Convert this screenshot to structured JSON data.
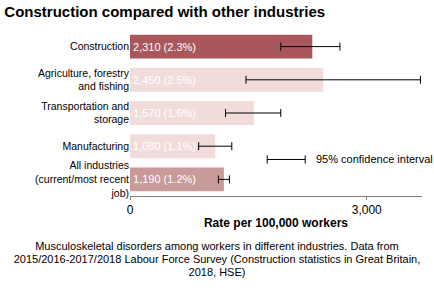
{
  "chart_data": {
    "type": "bar",
    "orientation": "horizontal",
    "title": "Construction compared with other industries",
    "x_label": "Rate per 100,000 workers",
    "categories": [
      "Construction",
      "Agriculture, forestry and fishing",
      "Transportation and storage",
      "Manufacturing",
      "All industries (current/most recent job)"
    ],
    "values": [
      2310,
      2450,
      1570,
      1080,
      1190
    ],
    "value_labels": [
      "2,310 (2.3%)",
      "2,450 (2.5%)",
      "1,570 (1.6%)",
      "1,080 (1.1%)",
      "1,190 (1.2%)"
    ],
    "ci_lower": [
      1910,
      1470,
      1210,
      870,
      1120
    ],
    "ci_upper": [
      2660,
      3680,
      1910,
      1290,
      1260
    ],
    "colors": [
      "#a8585c",
      "#f2dcdb",
      "#f2dcdb",
      "#f2dcdb",
      "#c89a9a"
    ],
    "xlim": [
      0,
      3700
    ],
    "xticks": [
      0,
      {
        "value": 3000,
        "label": "3,000"
      }
    ],
    "grid": false,
    "data_labels": true,
    "annotations": [
      "95% confidence interval"
    ],
    "caption": "Musculoskeletal disorders among workers in different industries. Data from 2015/2016-2017/2018 Labour Force Survey (Construction statistics in Great Britain, 2018, HSE)"
  }
}
